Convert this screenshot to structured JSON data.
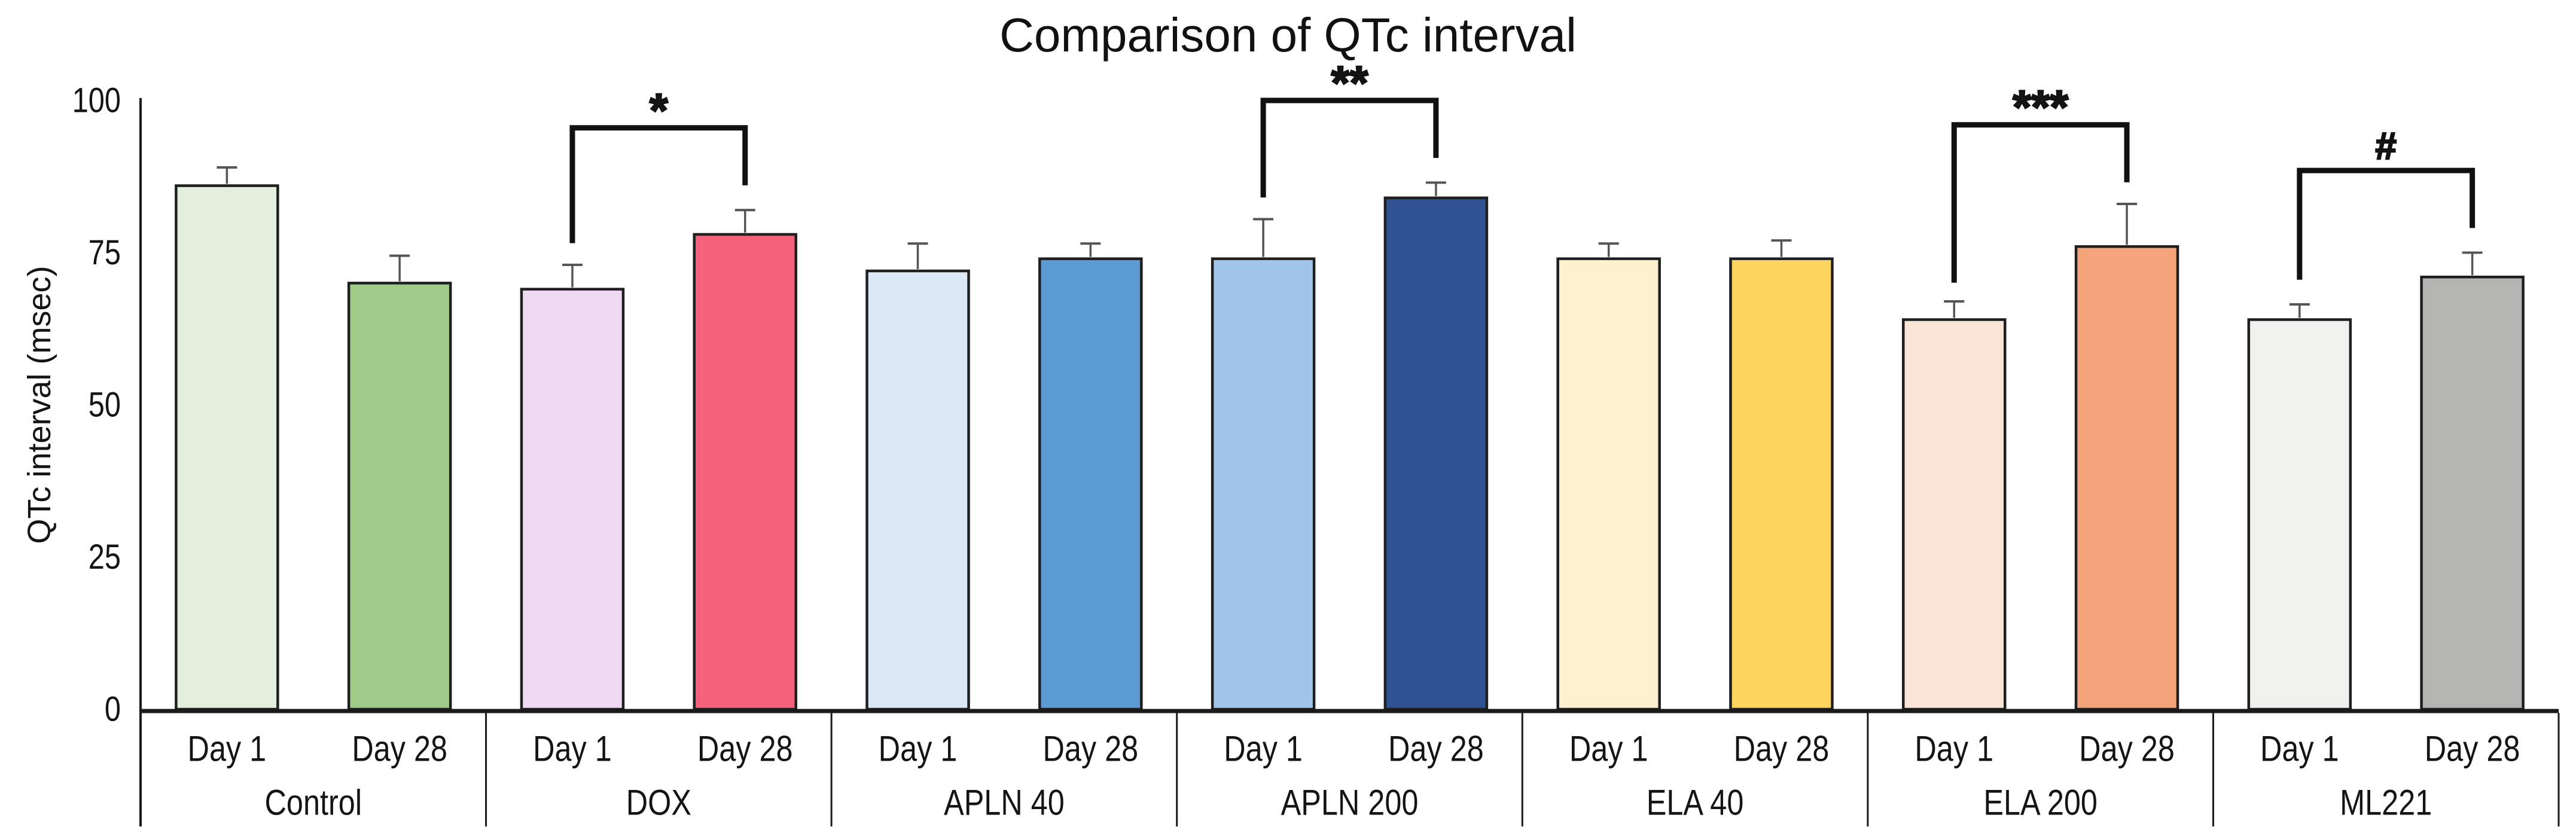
{
  "title": "Comparison of QTc interval",
  "chart_data": {
    "type": "bar",
    "title": "Comparison of QTc interval",
    "ylabel": "QTc interval (msec)",
    "ylim": [
      0,
      100
    ],
    "yticks": [
      0,
      25,
      50,
      75,
      100
    ],
    "categories": [
      "Control",
      "DOX",
      "APLN 40",
      "APLN 200",
      "ELA 40",
      "ELA 200",
      "ML221"
    ],
    "sublabels": [
      "Day 1",
      "Day 28"
    ],
    "grid": false,
    "legend": "none",
    "groups": [
      {
        "label": "Control",
        "bars": [
          {
            "sublabel": "Day 1",
            "value": 86,
            "error": 3,
            "fill": "#e2efdc"
          },
          {
            "sublabel": "Day 28",
            "value": 70,
            "error": 4.5,
            "fill": "#a1cb88"
          }
        ]
      },
      {
        "label": "DOX",
        "bars": [
          {
            "sublabel": "Day 1",
            "value": 69,
            "error": 4,
            "fill": "#f0daf3"
          },
          {
            "sublabel": "Day 28",
            "value": 78,
            "error": 4,
            "fill": "#f4617a"
          }
        ]
      },
      {
        "label": "APLN 40",
        "bars": [
          {
            "sublabel": "Day 1",
            "value": 72,
            "error": 4.5,
            "fill": "#dbe8f6"
          },
          {
            "sublabel": "Day 28",
            "value": 74,
            "error": 2.5,
            "fill": "#5b9ad2"
          }
        ]
      },
      {
        "label": "APLN 200",
        "bars": [
          {
            "sublabel": "Day 1",
            "value": 74,
            "error": 6.5,
            "fill": "#a0c5e8"
          },
          {
            "sublabel": "Day 28",
            "value": 84,
            "error": 2.5,
            "fill": "#2e5291"
          }
        ]
      },
      {
        "label": "ELA 40",
        "bars": [
          {
            "sublabel": "Day 1",
            "value": 74,
            "error": 2.5,
            "fill": "#fdf1cd"
          },
          {
            "sublabel": "Day 28",
            "value": 74,
            "error": 3,
            "fill": "#fdd45e"
          }
        ]
      },
      {
        "label": "ELA 200",
        "bars": [
          {
            "sublabel": "Day 1",
            "value": 64,
            "error": 3,
            "fill": "#fae4d5"
          },
          {
            "sublabel": "Day 28",
            "value": 76,
            "error": 7,
            "fill": "#f3a478"
          }
        ]
      },
      {
        "label": "ML221",
        "bars": [
          {
            "sublabel": "Day 1",
            "value": 64,
            "error": 2.5,
            "fill": "#f0f0ef"
          },
          {
            "sublabel": "Day 28",
            "value": 71,
            "error": 4,
            "fill": "#b4b4b3"
          }
        ]
      }
    ],
    "significance": [
      {
        "group": "DOX",
        "label": "*",
        "bracket_top": 95.5,
        "left_leg_bottom": 77,
        "right_leg_bottom": 86.5
      },
      {
        "group": "APLN 200",
        "label": "**",
        "bracket_top": 100,
        "left_leg_bottom": 84.5,
        "right_leg_bottom": 91
      },
      {
        "group": "ELA 200",
        "label": "***",
        "bracket_top": 96,
        "left_leg_bottom": 70.5,
        "right_leg_bottom": 87
      },
      {
        "group": "ML221",
        "label": "#",
        "bracket_top": 88.5,
        "left_leg_bottom": 71,
        "right_leg_bottom": 79.5
      }
    ],
    "colors": {
      "background": "#ffffff",
      "bar_border": "#1f1f1f",
      "axis": "#1a1a1a",
      "error_bar": "#555555",
      "bracket": "#111111",
      "text": "#141414"
    }
  }
}
